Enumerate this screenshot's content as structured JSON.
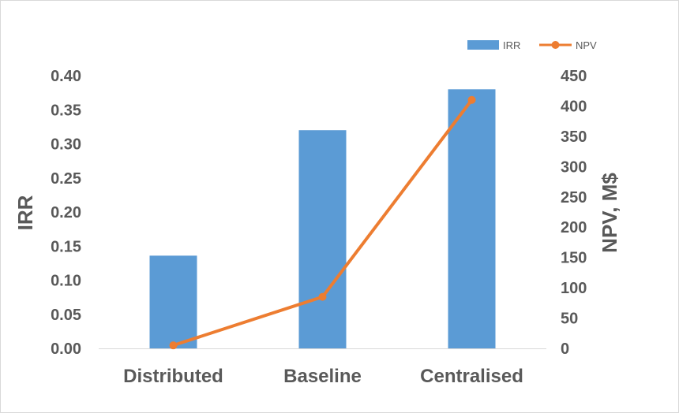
{
  "chart_data": {
    "type": "bar",
    "categories": [
      "Distributed",
      "Baseline",
      "Centralised"
    ],
    "series": [
      {
        "name": "IRR",
        "type": "bar",
        "axis": "left",
        "values": [
          0.136,
          0.32,
          0.38
        ],
        "color": "#5b9bd5"
      },
      {
        "name": "NPV",
        "type": "line",
        "axis": "right",
        "values": [
          5,
          85,
          410
        ],
        "color": "#ed7d31"
      }
    ],
    "ylabel": "IRR",
    "ylabel_right": "NPV, M$",
    "ylim": [
      0,
      0.4
    ],
    "ylim_right": [
      0,
      450
    ],
    "yticks": [
      "0.00",
      "0.05",
      "0.10",
      "0.15",
      "0.20",
      "0.25",
      "0.30",
      "0.35",
      "0.40"
    ],
    "yticks_right": [
      "0",
      "50",
      "100",
      "150",
      "200",
      "250",
      "300",
      "350",
      "400",
      "450"
    ],
    "legend": {
      "placement": "top-right",
      "entries": [
        "IRR",
        "NPV"
      ]
    },
    "grid": false
  }
}
